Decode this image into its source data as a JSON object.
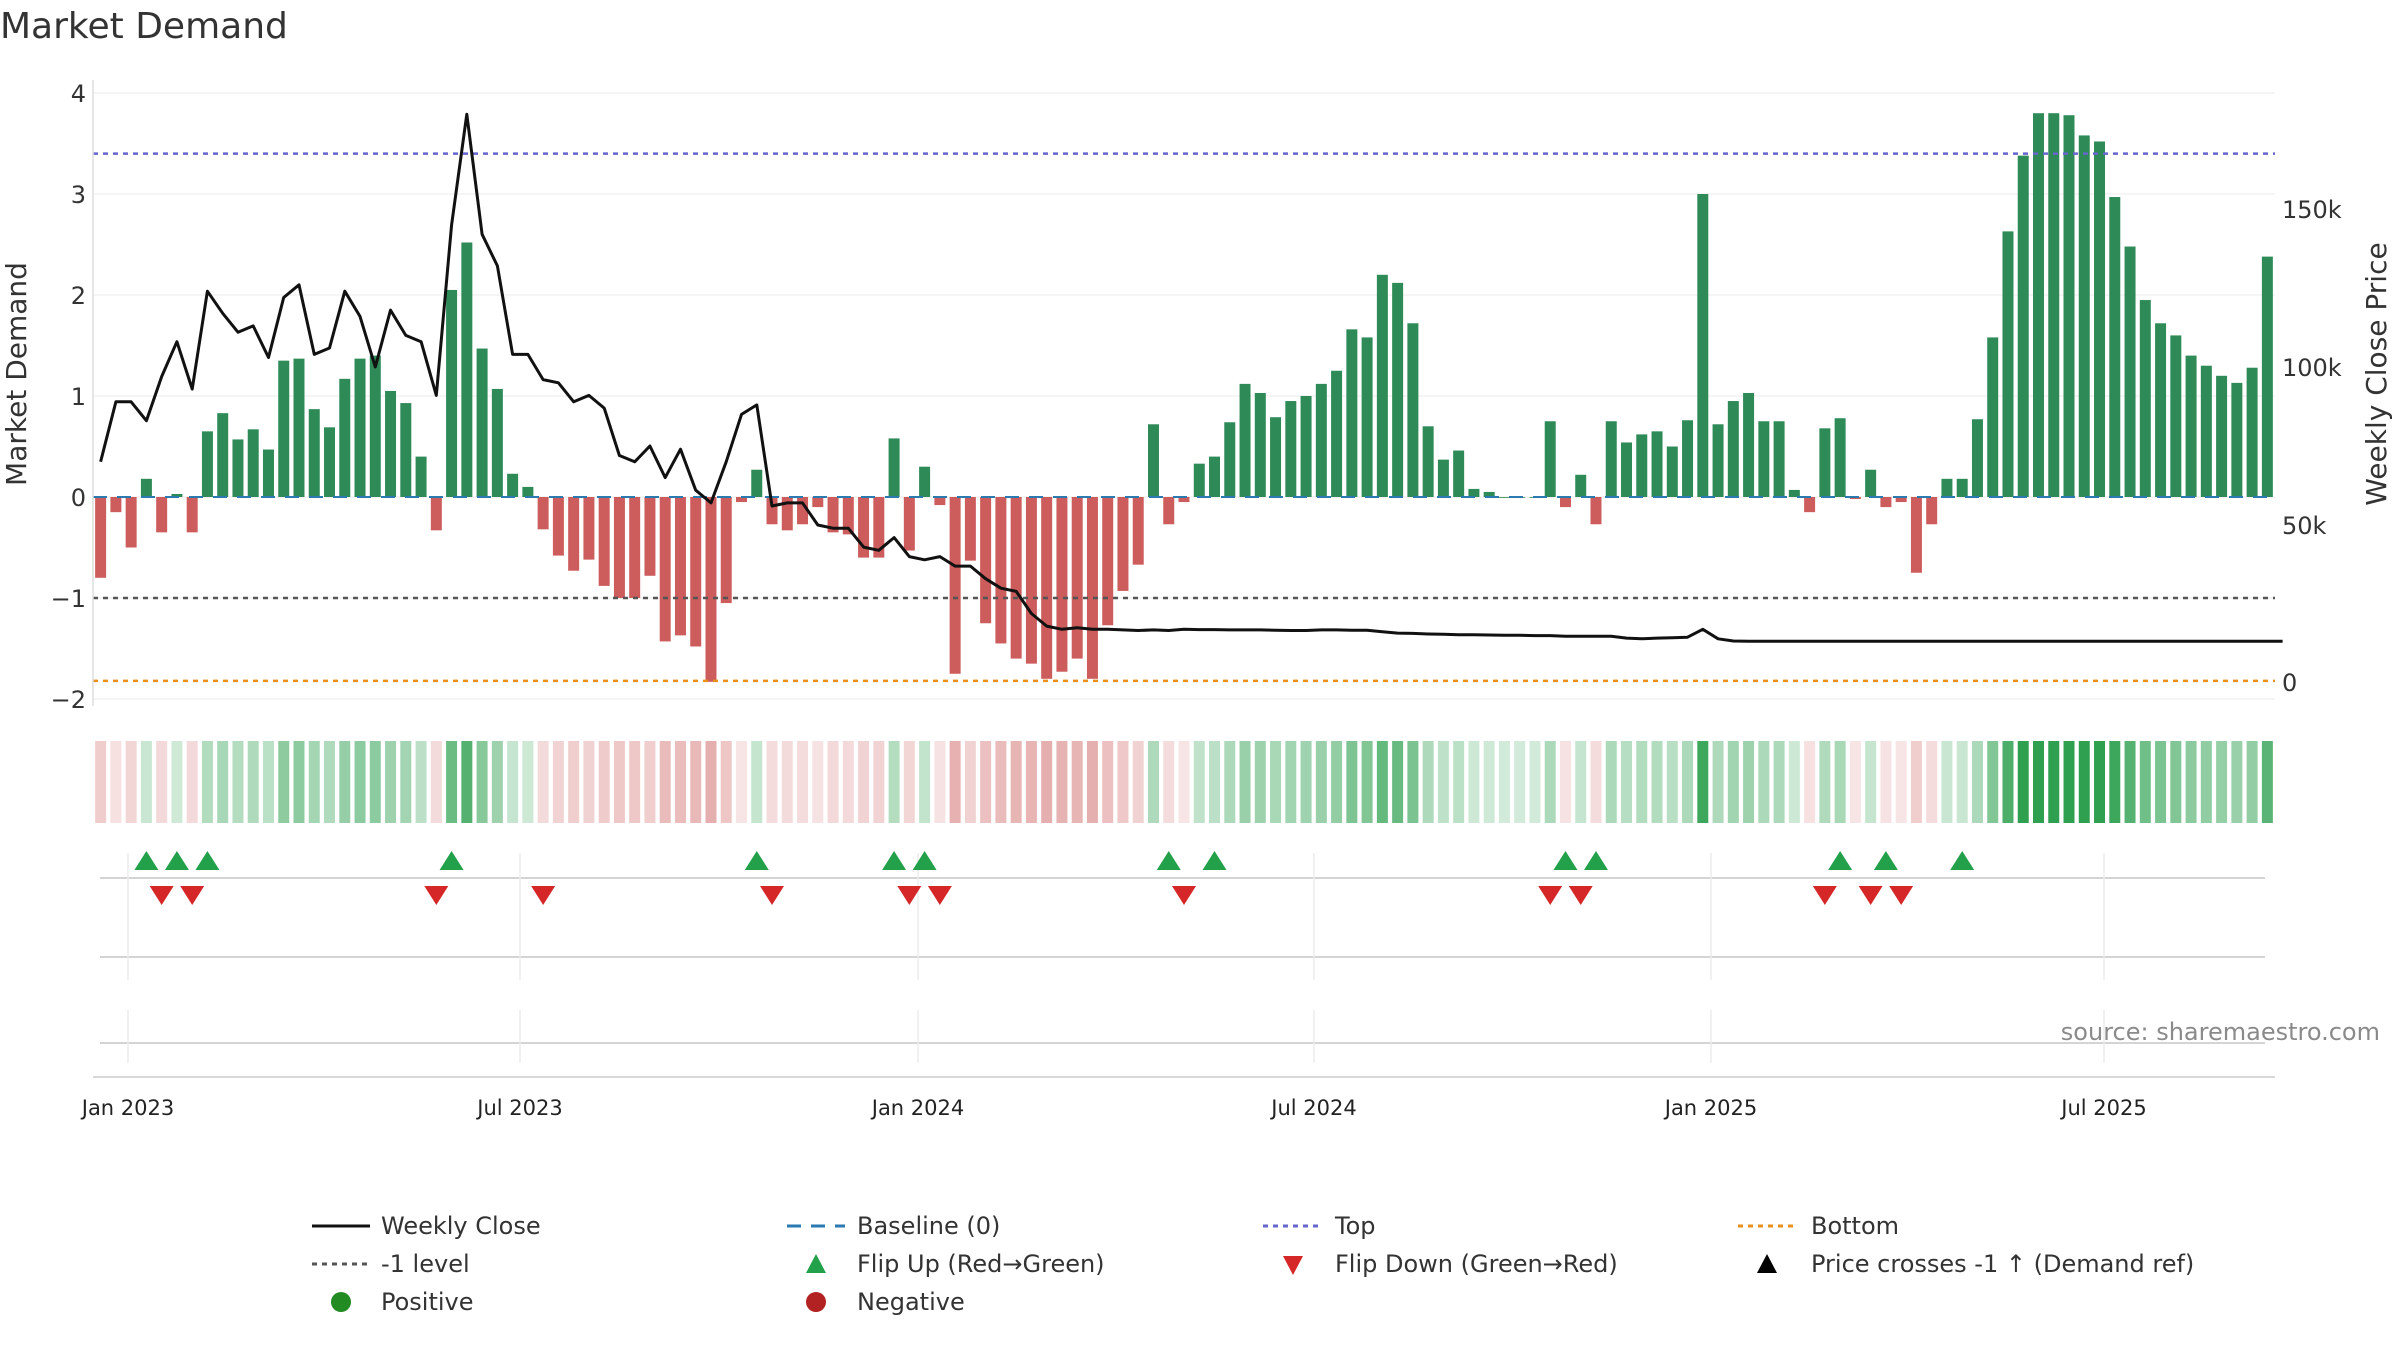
{
  "chart_data": {
    "type": "bar",
    "title": "Market Demand",
    "ylabel": "Market Demand",
    "y2label": "Weekly Close Price",
    "ylim": [
      -2.0,
      4.0
    ],
    "y_ticks": [
      "4",
      "3",
      "2",
      "1",
      "0",
      "−1",
      "−2"
    ],
    "y2lim": [
      0,
      200000
    ],
    "y2_ticks": [
      "150k",
      "100k",
      "50k",
      "0"
    ],
    "x_ticks": [
      "Jan 2023",
      "Jul 2023",
      "Jan 2024",
      "Jul 2024",
      "Jan 2025",
      "Jul 2025"
    ],
    "reference_lines": {
      "top": 3.4,
      "minus_one": -1.0,
      "bottom": -1.82,
      "baseline": 0
    },
    "series": [
      {
        "name": "Market Demand",
        "values": [
          -0.8,
          -0.15,
          -0.5,
          0.18,
          -0.35,
          0.03,
          -0.35,
          0.65,
          0.83,
          0.57,
          0.67,
          0.47,
          1.35,
          1.37,
          0.87,
          0.69,
          1.17,
          1.37,
          1.4,
          1.05,
          0.93,
          0.4,
          -0.33,
          2.05,
          2.52,
          1.47,
          1.07,
          0.23,
          0.1,
          -0.32,
          -0.58,
          -0.73,
          -0.62,
          -0.88,
          -1.0,
          -1.0,
          -0.78,
          -1.43,
          -1.37,
          -1.48,
          -1.83,
          -1.05,
          -0.05,
          0.27,
          -0.27,
          -0.33,
          -0.27,
          -0.1,
          -0.35,
          -0.37,
          -0.6,
          -0.6,
          0.58,
          -0.53,
          0.3,
          -0.08,
          -1.75,
          -0.63,
          -1.25,
          -1.45,
          -1.6,
          -1.65,
          -1.8,
          -1.73,
          -1.6,
          -1.8,
          -1.27,
          -0.93,
          -0.67,
          0.72,
          -0.27,
          -0.05,
          0.33,
          0.4,
          0.74,
          1.12,
          1.03,
          0.79,
          0.95,
          1.0,
          1.12,
          1.25,
          1.66,
          1.58,
          2.2,
          2.12,
          1.72,
          0.7,
          0.37,
          0.46,
          0.08,
          0.05,
          0.0,
          0.0,
          0.0,
          0.75,
          -0.1,
          0.22,
          -0.27,
          0.75,
          0.54,
          0.62,
          0.65,
          0.5,
          0.76,
          3.0,
          0.72,
          0.95,
          1.03,
          0.75,
          0.75,
          0.07,
          -0.15,
          0.68,
          0.78,
          -0.02,
          0.27,
          -0.1,
          -0.05,
          -0.75,
          -0.27,
          0.18,
          0.18,
          0.77,
          1.58,
          2.63,
          3.38,
          3.8,
          3.8,
          3.78,
          3.58,
          3.52,
          2.97,
          2.48,
          1.95,
          1.72,
          1.6,
          1.4,
          1.3,
          1.2,
          1.13,
          1.28,
          2.38
        ]
      },
      {
        "name": "Weekly Close",
        "values": [
          70000,
          89000,
          89000,
          83000,
          97000,
          108000,
          93000,
          124000,
          117000,
          111000,
          113000,
          103000,
          122000,
          126000,
          104000,
          106000,
          124000,
          116000,
          100000,
          118000,
          110000,
          108000,
          91000,
          145000,
          180000,
          142000,
          132000,
          104000,
          104000,
          96000,
          95000,
          89000,
          91000,
          87000,
          72000,
          70000,
          75000,
          65000,
          74000,
          61000,
          57000,
          70000,
          85000,
          88000,
          56000,
          57000,
          57000,
          50000,
          49000,
          49000,
          43000,
          42000,
          46000,
          40000,
          39000,
          40000,
          37000,
          37000,
          33000,
          30000,
          29000,
          22000,
          18000,
          17000,
          17500,
          17000,
          17000,
          16800,
          16600,
          16800,
          16600,
          17000,
          16900,
          16900,
          16800,
          16800,
          16800,
          16700,
          16600,
          16600,
          16800,
          16800,
          16700,
          16700,
          16200,
          15800,
          15700,
          15500,
          15400,
          15300,
          15300,
          15200,
          15100,
          15100,
          15000,
          15000,
          14800,
          14800,
          14800,
          14800,
          14200,
          14000,
          14200,
          14300,
          14500,
          17000,
          14000,
          13300,
          13200,
          13200,
          13200,
          13200,
          13200,
          13200,
          13200,
          13200,
          13200,
          13200,
          13200,
          13200,
          13200,
          13200,
          13200,
          13200,
          13200,
          13200,
          13200,
          13200,
          13200,
          13200,
          13200,
          13200,
          13200,
          13200,
          13200,
          13200,
          13200,
          13200,
          13200,
          13200,
          13200,
          13200,
          13200,
          13200
        ]
      }
    ],
    "flip_up_indices": [
      3,
      5,
      7,
      23,
      43,
      52,
      54,
      70,
      73,
      96,
      98,
      114,
      117,
      122
    ],
    "flip_down_indices": [
      4,
      6,
      22,
      29,
      44,
      53,
      55,
      71,
      95,
      97,
      113,
      116,
      118
    ],
    "source": "source: sharemaestro.com",
    "legend": [
      {
        "label": "Weekly Close",
        "style": "line",
        "color": "#111111"
      },
      {
        "label": "Baseline (0)",
        "style": "dashed",
        "color": "#2a7ab0"
      },
      {
        "label": "Top",
        "style": "dotted",
        "color": "#6666cc"
      },
      {
        "label": "Bottom",
        "style": "dotted",
        "color": "#e8901c"
      },
      {
        "label": "-1 level",
        "style": "dotted",
        "color": "#555555"
      },
      {
        "label": "Flip Up (Red→Green)",
        "style": "triangle-up",
        "color": "#22a04a"
      },
      {
        "label": "Flip Down (Green→Red)",
        "style": "triangle-down",
        "color": "#d62728"
      },
      {
        "label": "Price crosses -1 ↑ (Demand ref)",
        "style": "triangle-up",
        "color": "#000000"
      },
      {
        "label": "Positive",
        "style": "circle",
        "color": "#228b22"
      },
      {
        "label": "Negative",
        "style": "circle",
        "color": "#b22222"
      }
    ]
  },
  "colors": {
    "positive_bar": "#2e8b57",
    "negative_bar": "#cd5c5c",
    "line": "#111111"
  }
}
